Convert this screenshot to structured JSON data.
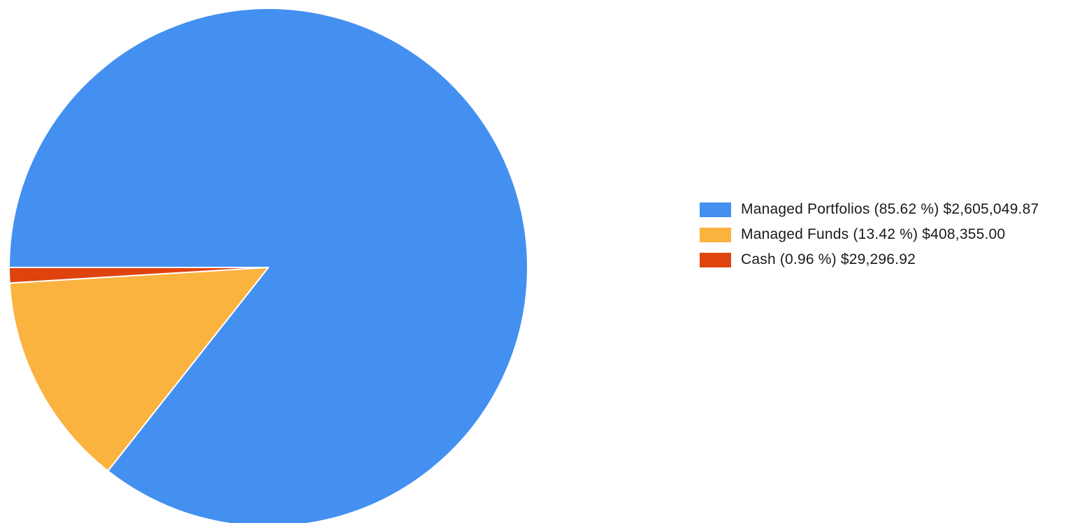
{
  "chart_data": {
    "type": "pie",
    "title": "",
    "slices": [
      {
        "name": "Managed Portfolios",
        "percent": 85.62,
        "value": 2605049.87,
        "label": "Managed Portfolios (85.62 %) $2,605,049.87",
        "color": "#4390f1"
      },
      {
        "name": "Managed Funds",
        "percent": 13.42,
        "value": 408355.0,
        "label": "Managed Funds (13.42 %) $408,355.00",
        "color": "#fbb340"
      },
      {
        "name": "Cash",
        "percent": 0.96,
        "value": 29296.92,
        "label": "Cash (0.96 %) $29,296.92",
        "color": "#df430e"
      }
    ],
    "legend_position": "right",
    "start_angle": "9 o'clock",
    "direction": "clockwise"
  }
}
